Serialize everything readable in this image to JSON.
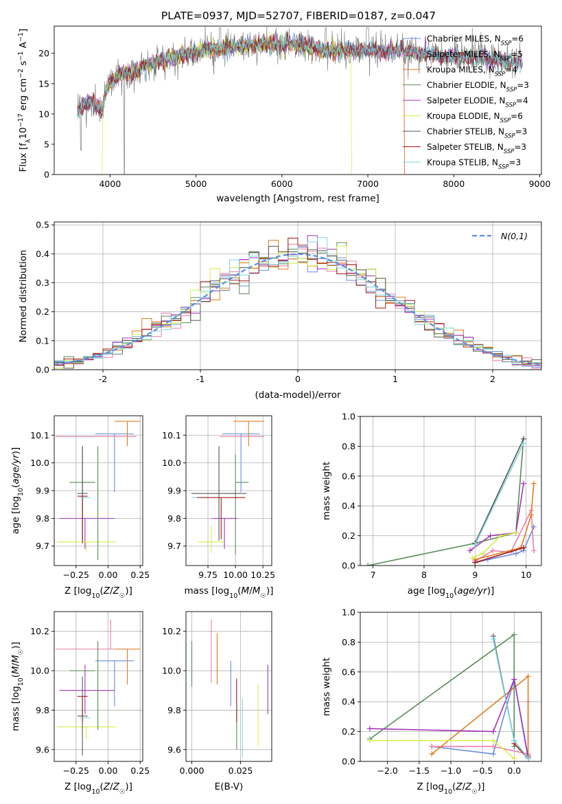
{
  "title": "PLATE=0937, MJD=52707, FIBERID=0187, z=0.047",
  "colors": {
    "Chabrier MILES": "#6a8be0",
    "Salpeter MILES": "#e87ea8",
    "Kroupa MILES": "#e07b20",
    "Chabrier ELODIE": "#5a8a5a",
    "Salpeter ELODIE": "#a033b8",
    "Kroupa ELODIE": "#d6ee4a",
    "Chabrier STELIB": "#555555",
    "Salpeter STELIB": "#a01818",
    "Kroupa STELIB": "#7fd6dc",
    "data": "#7f7f7f",
    "normal": "#5b8ee0"
  },
  "chart_data": [
    {
      "id": "spectrum",
      "type": "line",
      "xlabel": "wavelength [Angstrom, rest frame]",
      "ylabel": "Flux [f_λ 10^-17 erg cm^-2 s^-1 A^-1]",
      "xlim": [
        3350,
        9020
      ],
      "ylim": [
        0,
        24.5
      ],
      "xticks": [
        4000,
        5000,
        6000,
        7000,
        8000,
        9000
      ],
      "yticks": [
        0,
        5,
        10,
        15,
        20
      ],
      "legend": {
        "position": "top-right",
        "entries": [
          {
            "label": "Chabrier MILES, N",
            "sub": "SSP",
            "val": "=6"
          },
          {
            "label": "Salpeter MILES, N",
            "sub": "SSP",
            "val": "=5"
          },
          {
            "label": "Kroupa MILES, N",
            "sub": "SSP",
            "val": "=4"
          },
          {
            "label": "Chabrier ELODIE, N",
            "sub": "SSP",
            "val": "=3"
          },
          {
            "label": "Salpeter ELODIE, N",
            "sub": "SSP",
            "val": "=4"
          },
          {
            "label": "Kroupa ELODIE, N",
            "sub": "SSP",
            "val": "=6"
          },
          {
            "label": "Chabrier STELIB, N",
            "sub": "SSP",
            "val": "=3"
          },
          {
            "label": "Salpeter STELIB, N",
            "sub": "SSP",
            "val": "=3"
          },
          {
            "label": "Kroupa STELIB, N",
            "sub": "SSP",
            "val": "=3"
          }
        ]
      },
      "continuum": {
        "x": [
          3620,
          3700,
          3800,
          3900,
          3960,
          4000,
          4100,
          4300,
          4500,
          4800,
          5100,
          5400,
          5800,
          6200,
          6500,
          6800,
          7000,
          7200,
          7400,
          7600,
          7900,
          8200,
          8500,
          8800
        ],
        "y": [
          10.5,
          11.5,
          12,
          10.5,
          14,
          15,
          16.5,
          17,
          18.5,
          19.5,
          20.5,
          21,
          21.5,
          21.5,
          20.5,
          20.5,
          20.5,
          20.5,
          20.5,
          20,
          19.5,
          19.5,
          19,
          18.5
        ]
      },
      "model_cutoffs": {
        "Kroupa ELODIE": [
          3910,
          6810
        ],
        "Kroupa MILES": [
          3600,
          7420
        ],
        "Salpeter MILES": [
          3600,
          7420
        ],
        "Chabrier MILES": [
          3600,
          7420
        ]
      }
    },
    {
      "id": "residuals",
      "type": "line",
      "xlabel": "(data-model)/error",
      "ylabel": "Normed distribution",
      "xlim": [
        -2.5,
        2.5
      ],
      "ylim": [
        0,
        0.51
      ],
      "xticks": [
        -2,
        -1,
        0,
        1,
        2
      ],
      "yticks": [
        0.0,
        0.1,
        0.2,
        0.3,
        0.4,
        0.5
      ],
      "legend": {
        "position": "top-right",
        "entries": [
          "N(0,1)"
        ]
      },
      "bin_width": 0.1,
      "grid": true
    },
    {
      "id": "age_vs_Z",
      "type": "scatter",
      "xlabel": "Z [log10(Z/Z☉)]",
      "ylabel": "age  [log10(age/yr)]",
      "xlim": [
        -0.42,
        0.27
      ],
      "ylim": [
        9.63,
        10.17
      ],
      "xticks": [
        -0.25,
        0.0,
        0.25
      ],
      "xtick_labels": [
        "−0.25",
        "0.00",
        "0.25"
      ],
      "yticks": [
        9.7,
        9.8,
        9.9,
        10.0,
        10.1
      ],
      "grid": true,
      "points": [
        {
          "model": "Chabrier MILES",
          "x": 0.05,
          "y": 10.105,
          "xerr": [
            0.15,
            0.15
          ],
          "yerr": [
            0.21,
            0.0
          ]
        },
        {
          "model": "Salpeter MILES",
          "x": 0.02,
          "y": 10.095,
          "xerr": [
            0.43,
            0.2
          ],
          "yerr": [
            0.0,
            0.0
          ]
        },
        {
          "model": "Kroupa MILES",
          "x": 0.15,
          "y": 10.15,
          "xerr": [
            0.1,
            0.1
          ],
          "yerr": [
            0.09,
            0.0
          ]
        },
        {
          "model": "Chabrier ELODIE",
          "x": -0.2,
          "y": 9.93,
          "xerr": [
            0.1,
            0.1
          ],
          "yerr": [
            0.18,
            0.13
          ]
        },
        {
          "model": "Salpeter ELODIE",
          "x": -0.18,
          "y": 9.8,
          "xerr": [
            0.2,
            0.23
          ],
          "yerr": [
            0.11,
            0.0
          ]
        },
        {
          "model": "Kroupa ELODIE",
          "x": -0.17,
          "y": 9.715,
          "xerr": [
            0.23,
            0.23
          ],
          "yerr": [
            0.035,
            0.0
          ]
        },
        {
          "model": "Chabrier STELIB",
          "x": -0.2,
          "y": 9.89,
          "xerr": [
            0.04,
            0.04
          ],
          "yerr": [
            0.17,
            0.17
          ]
        },
        {
          "model": "Salpeter STELIB",
          "x": -0.2,
          "y": 9.88,
          "xerr": [
            0.04,
            0.04
          ],
          "yerr": [
            0.17,
            0.0
          ]
        },
        {
          "model": "Kroupa STELIB",
          "x": -0.18,
          "y": 9.875,
          "xerr": [
            0.04,
            0.04
          ],
          "yerr": [
            0.0,
            0.0
          ]
        },
        {
          "model": "Chabrier ELODIE",
          "x": -0.08,
          "y": 9.93,
          "xerr": [
            0.0,
            0.0
          ],
          "yerr": [
            0.28,
            0.13
          ]
        }
      ]
    },
    {
      "id": "age_vs_mass",
      "type": "scatter",
      "xlabel": "mass [log10(M/M☉)]",
      "xlim": [
        9.55,
        10.33
      ],
      "ylim": [
        9.63,
        10.17
      ],
      "xticks": [
        9.75,
        10.0,
        10.25
      ],
      "xtick_labels": [
        "9.75",
        "10.00",
        "10.25"
      ],
      "yticks": [
        9.7,
        9.8,
        9.9,
        10.0,
        10.1
      ],
      "grid": true,
      "points": [
        {
          "model": "Chabrier MILES",
          "x": 10.05,
          "y": 10.105,
          "xerr": [
            0.17,
            0.17
          ],
          "yerr": [
            0.21,
            0.0
          ]
        },
        {
          "model": "Salpeter MILES",
          "x": 10.11,
          "y": 10.095,
          "xerr": [
            0.25,
            0.15
          ],
          "yerr": [
            0.0,
            0.0
          ]
        },
        {
          "model": "Kroupa MILES",
          "x": 10.12,
          "y": 10.15,
          "xerr": [
            0.14,
            0.14
          ],
          "yerr": [
            0.09,
            0.0
          ]
        },
        {
          "model": "Chabrier ELODIE",
          "x": 10.0,
          "y": 9.93,
          "xerr": [
            0.0,
            0.12
          ],
          "yerr": [
            0.26,
            0.1
          ]
        },
        {
          "model": "Salpeter ELODIE",
          "x": 9.9,
          "y": 9.8,
          "xerr": [
            0.12,
            0.12
          ],
          "yerr": [
            0.11,
            0.0
          ]
        },
        {
          "model": "Kroupa ELODIE",
          "x": 9.78,
          "y": 9.715,
          "xerr": [
            0.12,
            0.12
          ],
          "yerr": [
            0.04,
            0.06
          ]
        },
        {
          "model": "Chabrier STELIB",
          "x": 9.85,
          "y": 9.89,
          "xerr": [
            0.25,
            0.25
          ],
          "yerr": [
            0.17,
            0.17
          ]
        },
        {
          "model": "Salpeter STELIB",
          "x": 9.87,
          "y": 9.875,
          "xerr": [
            0.22,
            0.22
          ],
          "yerr": [
            0.15,
            0.0
          ]
        },
        {
          "model": "Kroupa STELIB",
          "x": 9.65,
          "y": 9.875,
          "xerr": [
            0.05,
            0.0
          ],
          "yerr": [
            0.0,
            0.0
          ]
        }
      ]
    },
    {
      "id": "mass_weight_vs_age",
      "type": "line",
      "xlabel": "age  [log10(age/yr)]",
      "ylabel": "mass weight",
      "xlim": [
        6.75,
        10.3
      ],
      "ylim": [
        0,
        1.0
      ],
      "xticks": [
        7,
        8,
        9,
        10
      ],
      "yticks": [
        0.0,
        0.2,
        0.4,
        0.6,
        0.8,
        1.0
      ],
      "grid": true,
      "series": [
        {
          "model": "Chabrier MILES",
          "x": [
            9.0,
            9.25,
            9.8,
            9.95,
            10.15
          ],
          "y": [
            0.02,
            0.04,
            0.08,
            0.1,
            0.26
          ]
        },
        {
          "model": "Salpeter MILES",
          "x": [
            9.0,
            9.35,
            9.7,
            10.1,
            10.15
          ],
          "y": [
            0.03,
            0.1,
            0.09,
            0.37,
            0.1
          ]
        },
        {
          "model": "Kroupa MILES",
          "x": [
            9.0,
            9.9,
            10.1,
            10.15
          ],
          "y": [
            0.04,
            0.12,
            0.34,
            0.55
          ]
        },
        {
          "model": "Chabrier ELODIE",
          "x": [
            6.9,
            9.0,
            9.8,
            9.95
          ],
          "y": [
            0.0,
            0.15,
            0.22,
            0.85
          ]
        },
        {
          "model": "Salpeter ELODIE",
          "x": [
            8.9,
            9.3,
            9.8,
            9.95
          ],
          "y": [
            0.1,
            0.2,
            0.22,
            0.55
          ]
        },
        {
          "model": "Kroupa ELODIE",
          "x": [
            8.95,
            9.15,
            9.5,
            9.8
          ],
          "y": [
            0.05,
            0.08,
            0.2,
            0.22
          ]
        },
        {
          "model": "Chabrier STELIB",
          "x": [
            9.0,
            9.95
          ],
          "y": [
            0.15,
            0.85
          ]
        },
        {
          "model": "Salpeter STELIB",
          "x": [
            9.0,
            9.95
          ],
          "y": [
            0.02,
            0.12
          ]
        },
        {
          "model": "Kroupa STELIB",
          "x": [
            9.0,
            9.95
          ],
          "y": [
            0.14,
            0.82
          ]
        }
      ]
    },
    {
      "id": "mass_vs_Z",
      "type": "scatter",
      "xlabel": "Z [log10(Z/Z☉)]",
      "ylabel": "mass [log10(M/M☉)]",
      "xlim": [
        -0.42,
        0.27
      ],
      "ylim": [
        9.54,
        10.3
      ],
      "xticks": [
        -0.25,
        0.0,
        0.25
      ],
      "xtick_labels": [
        "−0.25",
        "0.00",
        "0.25"
      ],
      "yticks": [
        9.6,
        9.8,
        10.0,
        10.2
      ],
      "grid": true,
      "points": [
        {
          "model": "Chabrier MILES",
          "x": 0.05,
          "y": 10.05,
          "xerr": [
            0.15,
            0.15
          ],
          "yerr": [
            0.23,
            0.0
          ]
        },
        {
          "model": "Salpeter MILES",
          "x": 0.02,
          "y": 10.11,
          "xerr": [
            0.43,
            0.2
          ],
          "yerr": [
            0.0,
            0.15
          ]
        },
        {
          "model": "Kroupa MILES",
          "x": 0.15,
          "y": 10.11,
          "xerr": [
            0.1,
            0.1
          ],
          "yerr": [
            0.18,
            0.0
          ]
        },
        {
          "model": "Chabrier ELODIE",
          "x": -0.2,
          "y": 10.0,
          "xerr": [
            0.1,
            0.1
          ],
          "yerr": [
            0.0,
            0.0
          ]
        },
        {
          "model": "Salpeter ELODIE",
          "x": -0.18,
          "y": 9.9,
          "xerr": [
            0.2,
            0.23
          ],
          "yerr": [
            0.12,
            0.13
          ]
        },
        {
          "model": "Kroupa ELODIE",
          "x": -0.17,
          "y": 9.715,
          "xerr": [
            0.23,
            0.23
          ],
          "yerr": [
            0.06,
            0.0
          ]
        },
        {
          "model": "Chabrier STELIB",
          "x": -0.2,
          "y": 9.77,
          "xerr": [
            0.04,
            0.04
          ],
          "yerr": [
            0.2,
            0.2
          ]
        },
        {
          "model": "Salpeter STELIB",
          "x": -0.2,
          "y": 9.87,
          "xerr": [
            0.04,
            0.04
          ],
          "yerr": [
            0.13,
            0.0
          ]
        },
        {
          "model": "Kroupa STELIB",
          "x": -0.18,
          "y": 9.76,
          "xerr": [
            0.04,
            0.04
          ],
          "yerr": [
            0.0,
            0.0
          ]
        },
        {
          "model": "Chabrier ELODIE",
          "x": -0.08,
          "y": 10.0,
          "xerr": [
            0.0,
            0.0
          ],
          "yerr": [
            0.3,
            0.15
          ]
        }
      ]
    },
    {
      "id": "mass_vs_EBV",
      "type": "scatter",
      "xlabel": "E(B-V)",
      "xlim": [
        -0.003,
        0.041
      ],
      "ylim": [
        9.54,
        10.3
      ],
      "xticks": [
        0.0,
        0.025
      ],
      "xtick_labels": [
        "0.000",
        "0.025"
      ],
      "yticks": [
        9.6,
        9.8,
        10.0,
        10.2
      ],
      "grid": true,
      "points": [
        {
          "model": "Chabrier ELODIE",
          "x": 0.0,
          "y": 10.06,
          "yerr": [
            0.14,
            0.09
          ]
        },
        {
          "model": "Salpeter MILES",
          "x": 0.01,
          "y": 10.11,
          "yerr": [
            0.17,
            0.15
          ]
        },
        {
          "model": "Kroupa MILES",
          "x": 0.013,
          "y": 10.11,
          "yerr": [
            0.18,
            0.08
          ]
        },
        {
          "model": "Chabrier MILES",
          "x": 0.02,
          "y": 10.05,
          "yerr": [
            0.23,
            0.0
          ]
        },
        {
          "model": "Chabrier ELODIE",
          "x": 0.023,
          "y": 9.8,
          "yerr": [
            0.2,
            0.0
          ]
        },
        {
          "model": "Salpeter STELIB",
          "x": 0.023,
          "y": 9.87,
          "yerr": [
            0.13,
            0.09
          ]
        },
        {
          "model": "Kroupa STELIB",
          "x": 0.026,
          "y": 9.76,
          "yerr": [
            0.2,
            0.1
          ]
        },
        {
          "model": "Kroupa ELODIE",
          "x": 0.034,
          "y": 9.8,
          "yerr": [
            0.18,
            0.13
          ]
        },
        {
          "model": "Salpeter ELODIE",
          "x": 0.039,
          "y": 9.9,
          "yerr": [
            0.12,
            0.13
          ]
        }
      ]
    },
    {
      "id": "mass_weight_vs_Z",
      "type": "line",
      "xlabel": "Z [log10(Z/Z☉)]",
      "ylabel": "mass weight",
      "xlim": [
        -2.43,
        0.43
      ],
      "ylim": [
        0,
        1.0
      ],
      "xticks": [
        -2.0,
        -1.5,
        -1.0,
        -0.5,
        0.0
      ],
      "xtick_labels": [
        "−2.0",
        "−1.5",
        "−1.0",
        "−0.5",
        "0.0"
      ],
      "yticks": [
        0.0,
        0.2,
        0.4,
        0.6,
        0.8,
        1.0
      ],
      "grid": true,
      "series": [
        {
          "model": "Chabrier MILES",
          "x": [
            -1.3,
            -0.33,
            0.0,
            0.22,
            0.22
          ],
          "y": [
            0.1,
            0.05,
            0.55,
            0.02,
            0.03
          ]
        },
        {
          "model": "Salpeter MILES",
          "x": [
            -1.3,
            -0.33,
            0.22,
            0.22
          ],
          "y": [
            0.1,
            0.1,
            0.05,
            0.4
          ]
        },
        {
          "model": "Kroupa MILES",
          "x": [
            -1.3,
            0.22,
            0.22
          ],
          "y": [
            0.05,
            0.57,
            0.04
          ]
        },
        {
          "model": "Chabrier ELODIE",
          "x": [
            -2.28,
            0.0,
            0.0
          ],
          "y": [
            0.15,
            0.85,
            0.1
          ]
        },
        {
          "model": "Salpeter ELODIE",
          "x": [
            -2.28,
            -0.33,
            0.0,
            0.22
          ],
          "y": [
            0.22,
            0.2,
            0.55,
            0.03
          ]
        },
        {
          "model": "Kroupa ELODIE",
          "x": [
            -2.28,
            -0.33,
            0.0
          ],
          "y": [
            0.14,
            0.14,
            0.02
          ]
        },
        {
          "model": "Chabrier STELIB",
          "x": [
            -0.33,
            0.0,
            0.22
          ],
          "y": [
            0.84,
            0.14,
            0.02
          ]
        },
        {
          "model": "Salpeter STELIB",
          "x": [
            0.0,
            0.22
          ],
          "y": [
            0.12,
            0.02
          ]
        },
        {
          "model": "Kroupa STELIB",
          "x": [
            -0.33,
            0.0,
            0.22
          ],
          "y": [
            0.82,
            0.14,
            0.02
          ]
        }
      ]
    }
  ]
}
